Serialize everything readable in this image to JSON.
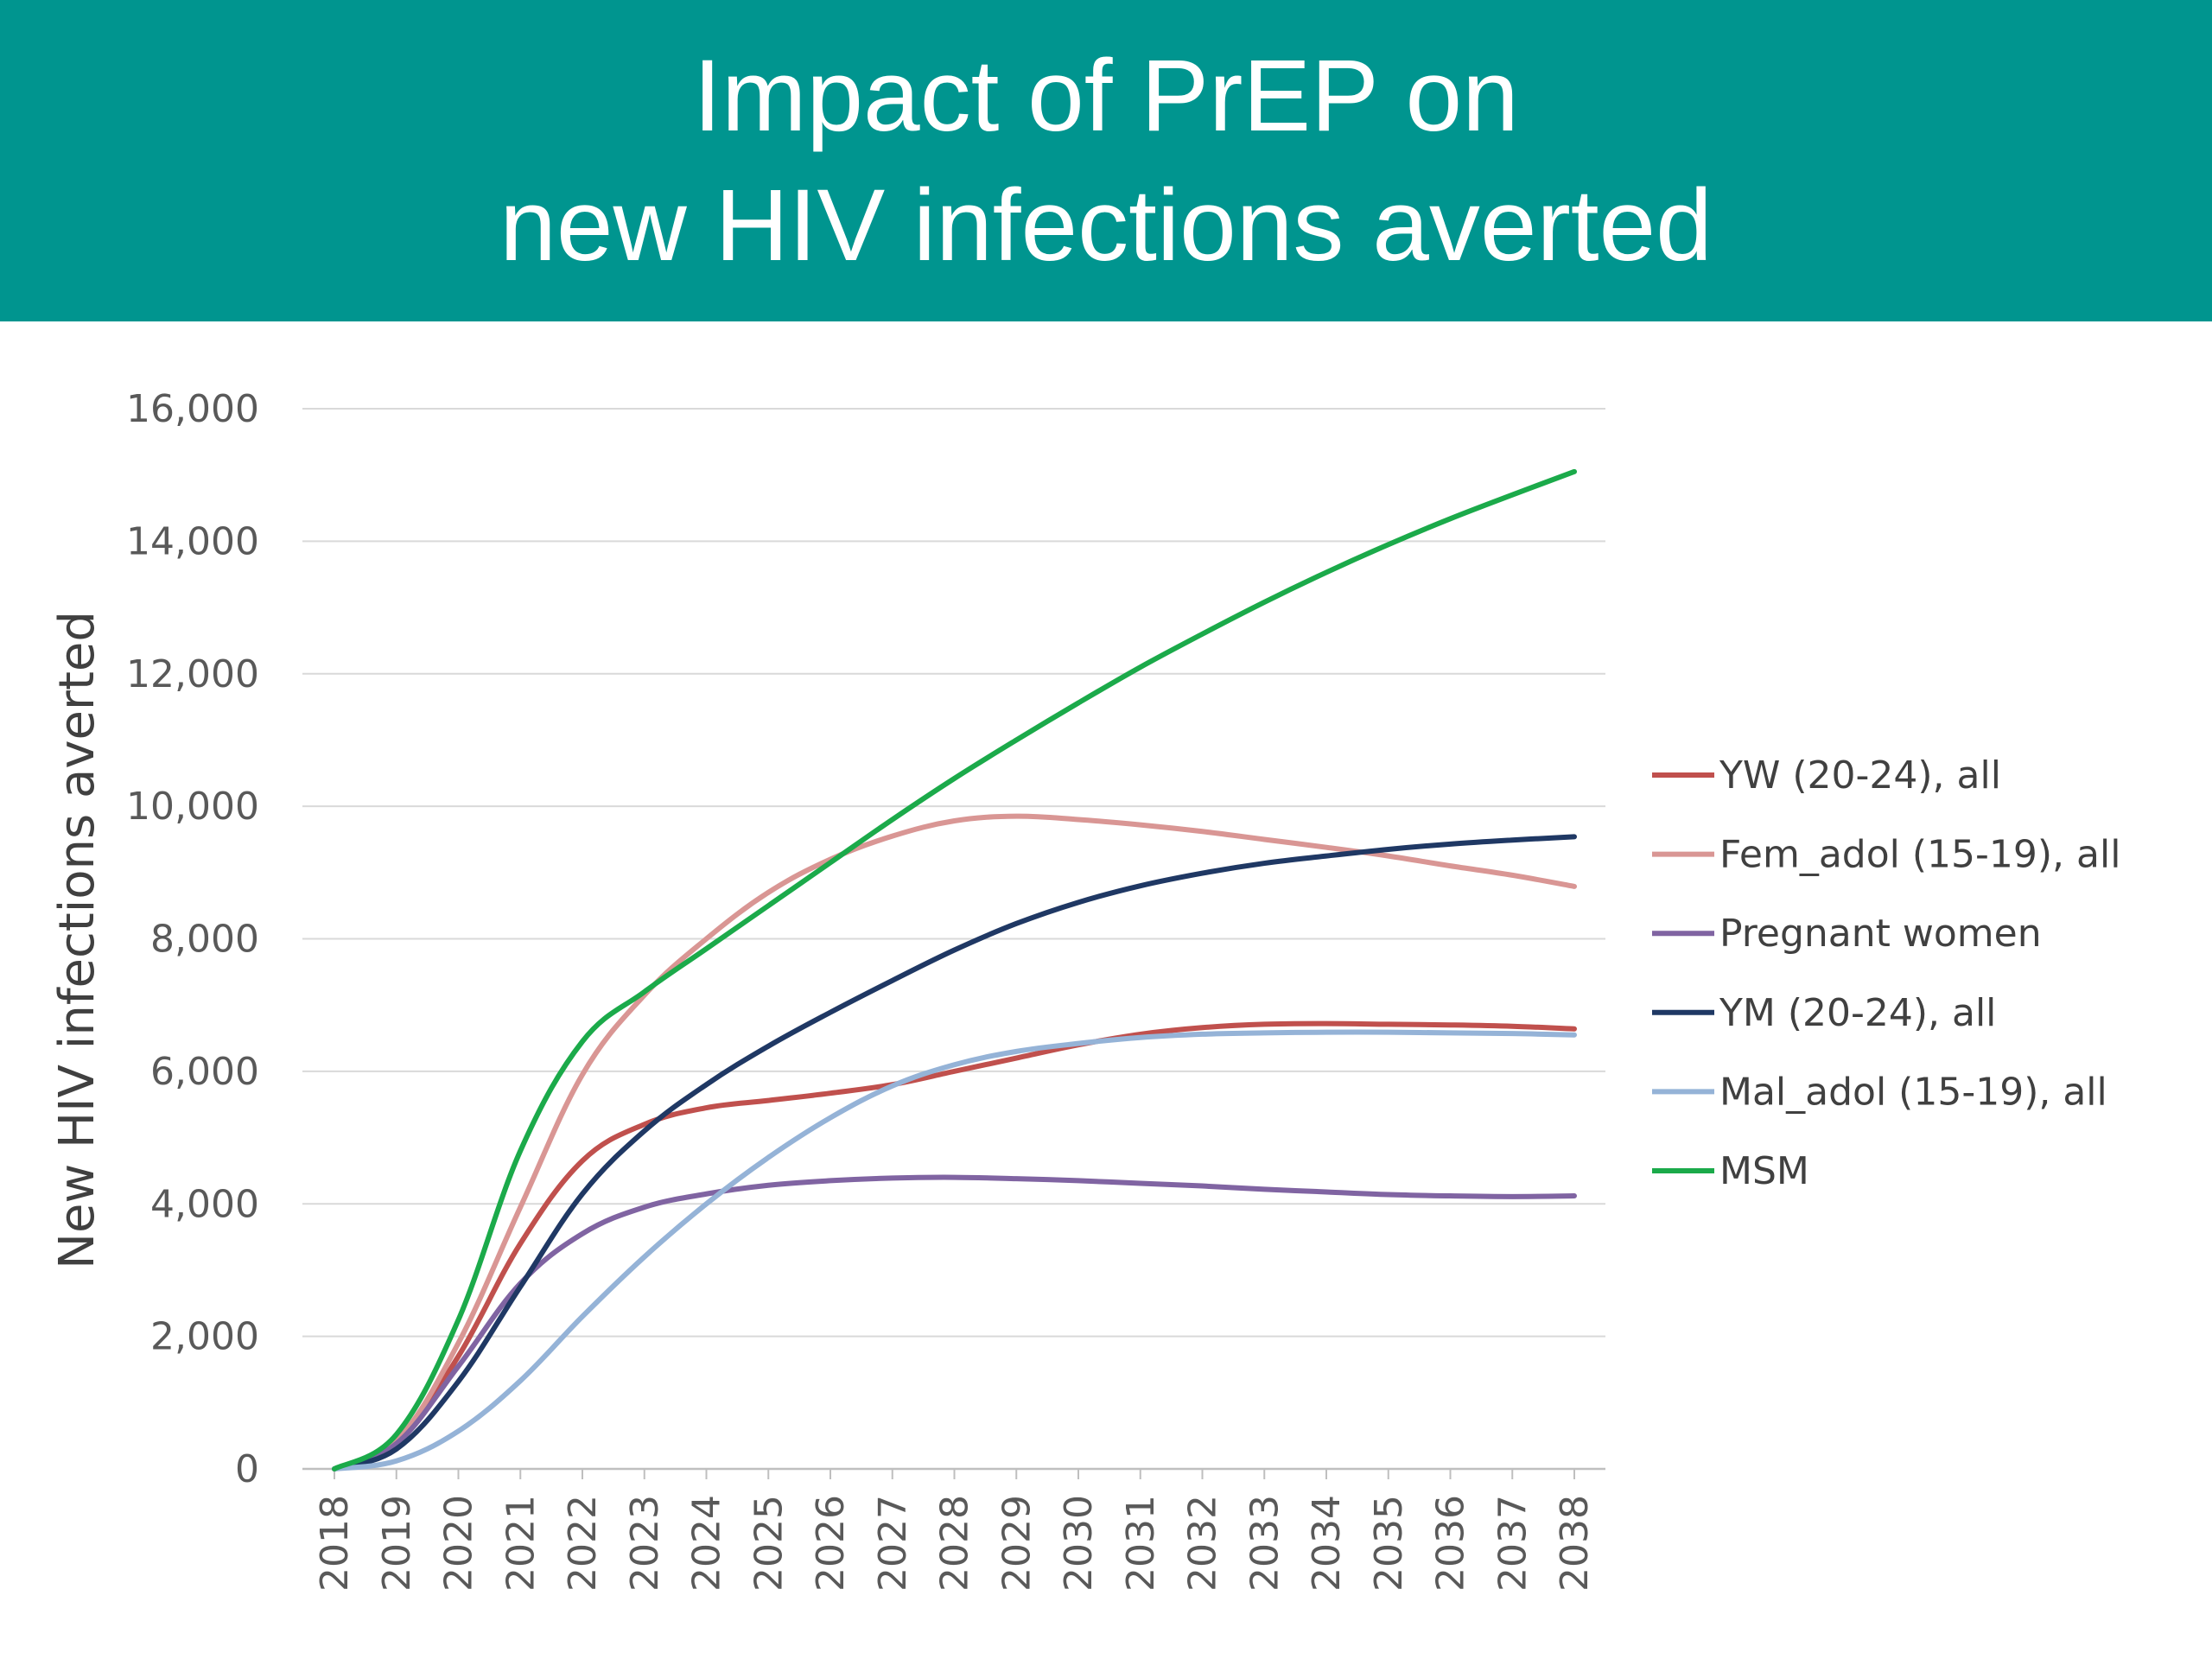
{
  "header": {
    "title_line1": "Impact of PrEP on",
    "title_line2": "new HIV infections averted"
  },
  "chart_data": {
    "type": "line",
    "title": "Impact of PrEP on new HIV infections averted",
    "xlabel": "",
    "ylabel": "New HIV infections averted",
    "x": [
      "2018",
      "2019",
      "2020",
      "2021",
      "2022",
      "2023",
      "2024",
      "2025",
      "2026",
      "2027",
      "2028",
      "2029",
      "2030",
      "2031",
      "2032",
      "2033",
      "2034",
      "2035",
      "2036",
      "2037",
      "2038"
    ],
    "ylim": [
      0,
      16000
    ],
    "yticks": [
      0,
      2000,
      4000,
      6000,
      8000,
      10000,
      12000,
      14000,
      16000
    ],
    "ytick_labels": [
      "0",
      "2,000",
      "4,000",
      "6,000",
      "8,000",
      "10,000",
      "12,000",
      "14,000",
      "16,000"
    ],
    "grid": true,
    "legend_position": "right",
    "series": [
      {
        "name": "YW (20-24), all",
        "color": "#C0504D",
        "values": [
          0,
          400,
          1700,
          3400,
          4650,
          5200,
          5450,
          5560,
          5670,
          5800,
          6000,
          6200,
          6400,
          6560,
          6660,
          6710,
          6720,
          6710,
          6700,
          6680,
          6640
        ]
      },
      {
        "name": "Fem_adol (15-19), all",
        "color": "#D99694",
        "values": [
          0,
          420,
          1900,
          3950,
          5950,
          7150,
          8000,
          8700,
          9200,
          9550,
          9780,
          9850,
          9800,
          9720,
          9620,
          9500,
          9380,
          9250,
          9100,
          8960,
          8790
        ]
      },
      {
        "name": "Pregnant women",
        "color": "#8064A2",
        "values": [
          0,
          380,
          1550,
          2800,
          3550,
          3950,
          4150,
          4280,
          4350,
          4390,
          4400,
          4380,
          4350,
          4310,
          4270,
          4220,
          4180,
          4140,
          4120,
          4110,
          4120
        ]
      },
      {
        "name": "YM (20-24), all",
        "color": "#1F3864",
        "values": [
          0,
          300,
          1320,
          2750,
          4150,
          5100,
          5800,
          6380,
          6890,
          7370,
          7830,
          8230,
          8550,
          8800,
          8990,
          9140,
          9250,
          9350,
          9430,
          9490,
          9540
        ]
      },
      {
        "name": "Mal_adol (15-19), all",
        "color": "#95B3D7",
        "values": [
          0,
          120,
          570,
          1330,
          2300,
          3200,
          4000,
          4700,
          5300,
          5780,
          6100,
          6300,
          6420,
          6510,
          6560,
          6580,
          6590,
          6590,
          6580,
          6570,
          6550
        ]
      },
      {
        "name": "MSM",
        "color": "#1BAA4A",
        "values": [
          0,
          520,
          2250,
          4800,
          6450,
          7200,
          7850,
          8500,
          9150,
          9800,
          10420,
          11000,
          11560,
          12100,
          12600,
          13080,
          13530,
          13950,
          14340,
          14700,
          15050
        ]
      }
    ]
  }
}
